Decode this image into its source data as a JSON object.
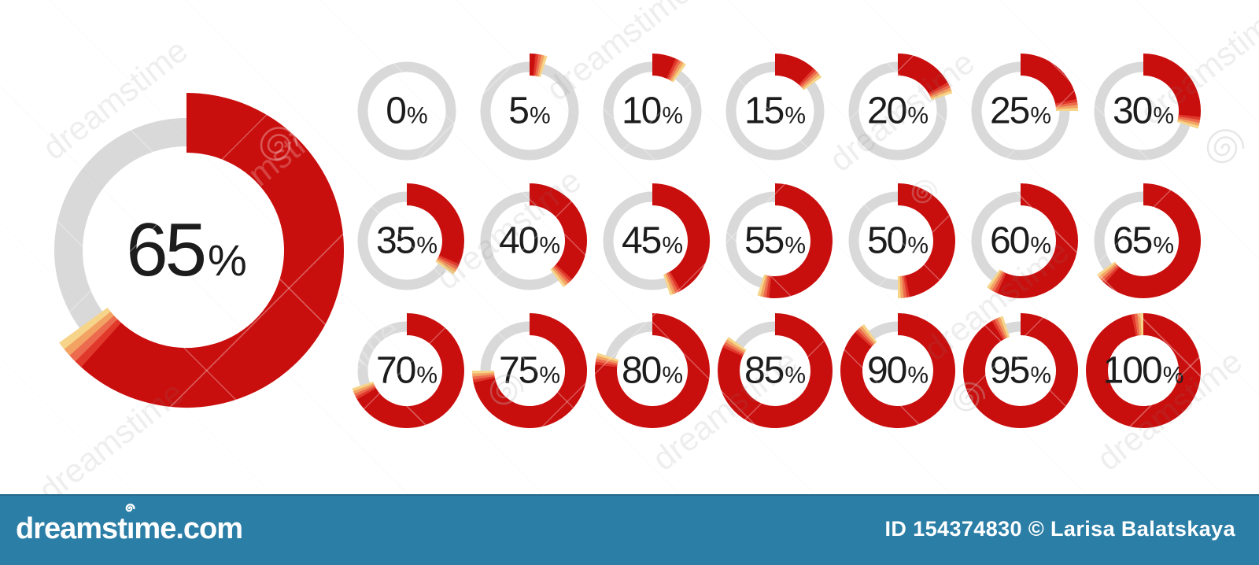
{
  "chart_data": {
    "type": "pie",
    "variant": "donut-percentage-progress-set",
    "unit": "%",
    "direction": "clockwise",
    "start_angle_deg": 0,
    "featured_percent": 65,
    "grid_percents": [
      [
        0,
        5,
        10,
        15,
        20,
        25,
        30
      ],
      [
        35,
        40,
        45,
        55,
        50,
        60,
        65
      ],
      [
        70,
        75,
        80,
        85,
        90,
        95,
        100
      ]
    ],
    "colors": {
      "track": "#d9d9d9",
      "fill": "#c90f0e",
      "tip_gradient": [
        "#e0392b",
        "#ec6b4e",
        "#f2a263",
        "#f6d489"
      ],
      "label": "#1c1c1c"
    },
    "legend": "none",
    "grid": "off"
  },
  "percent_suffix": "%",
  "watermark": {
    "diagonal_text": "dreamstime",
    "spiral_icon": "dreamstime-spiral"
  },
  "footer": {
    "background": "#2b7ea6",
    "logo_pre": "dreamst",
    "logo_i": "ı",
    "logo_post": "me.com",
    "credit": "ID 154374830 © Larisa Balatskaya"
  }
}
